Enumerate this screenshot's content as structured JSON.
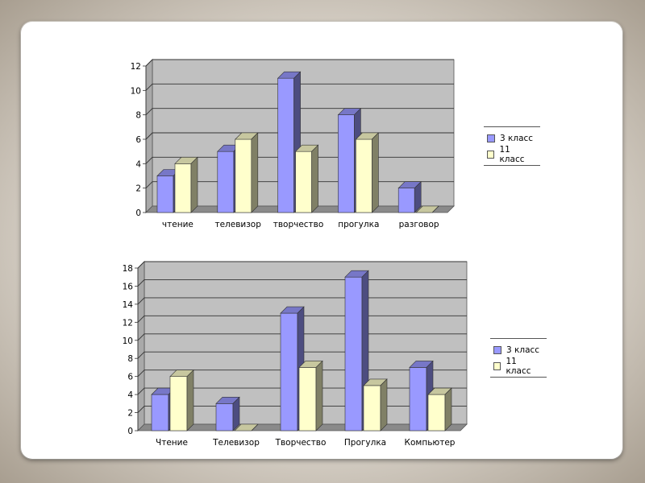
{
  "colors": {
    "series1": "#9999ff",
    "series2": "#ffffcc",
    "wall": "#c0c0c0",
    "floor": "#8a8a8a"
  },
  "chart_data": [
    {
      "type": "bar",
      "categories": [
        "чтение",
        "телевизор",
        "творчество",
        "прогулка",
        "разговор"
      ],
      "series": [
        {
          "name": "3 класс",
          "values": [
            3,
            5,
            11,
            8,
            2
          ]
        },
        {
          "name": "11 класс",
          "values": [
            4,
            6,
            5,
            6,
            0
          ]
        }
      ],
      "ylim": [
        0,
        12
      ],
      "yticks": [
        "0",
        "2",
        "4",
        "6",
        "8",
        "10",
        "12"
      ],
      "grid": true,
      "legend": "right"
    },
    {
      "type": "bar",
      "categories": [
        "Чтение",
        "Телевизор",
        "Творчество",
        "Прогулка",
        "Компьютер"
      ],
      "series": [
        {
          "name": "3 класс",
          "values": [
            4,
            3,
            13,
            17,
            7
          ]
        },
        {
          "name": "11 класс",
          "values": [
            6,
            0,
            7,
            5,
            4
          ]
        }
      ],
      "ylim": [
        0,
        18
      ],
      "yticks": [
        "0",
        "2",
        "4",
        "6",
        "8",
        "10",
        "12",
        "14",
        "16",
        "18"
      ],
      "grid": true,
      "legend": "right"
    }
  ]
}
